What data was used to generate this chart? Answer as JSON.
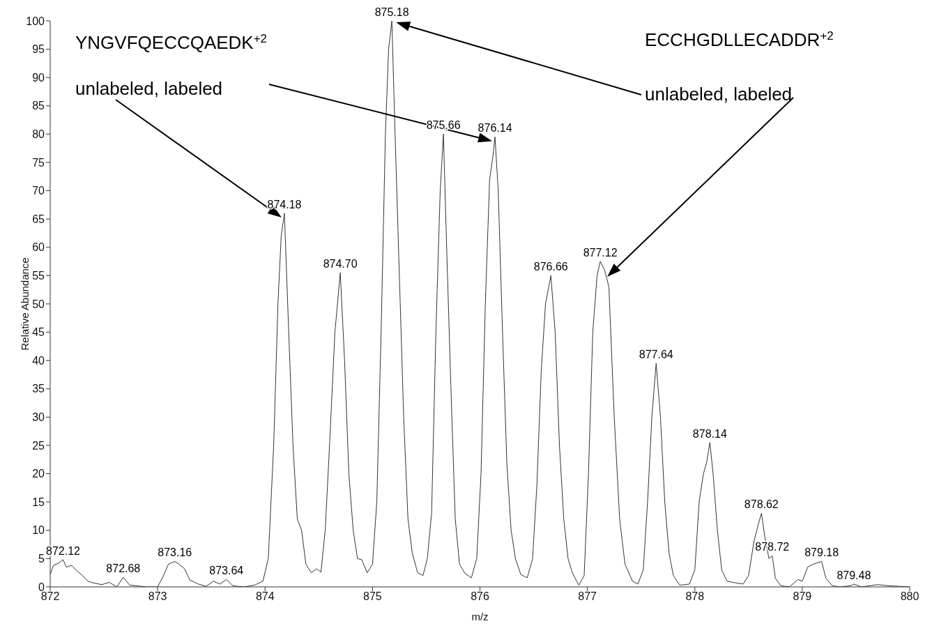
{
  "chart_data": {
    "type": "line",
    "xlabel": "m/z",
    "ylabel": "Relative Abundance",
    "xlim": [
      872,
      880
    ],
    "ylim": [
      0,
      100
    ],
    "xticks": [
      872,
      873,
      874,
      875,
      876,
      877,
      878,
      879,
      880
    ],
    "yticks": [
      0,
      5,
      10,
      15,
      20,
      25,
      30,
      35,
      40,
      45,
      50,
      55,
      60,
      65,
      70,
      75,
      80,
      85,
      90,
      95,
      100
    ],
    "grid": false,
    "legend": false,
    "marker": "none",
    "line_style": "solid",
    "series": [
      {
        "color": "#333333",
        "x": [
          872,
          872.03,
          872.08,
          872.12,
          872.15,
          872.2,
          872.25,
          872.3,
          872.35,
          872.4,
          872.48,
          872.55,
          872.62,
          872.68,
          872.74,
          872.8,
          872.9,
          873.0,
          873.05,
          873.1,
          873.16,
          873.2,
          873.25,
          873.3,
          873.38,
          873.45,
          873.52,
          873.58,
          873.64,
          873.7,
          873.8,
          873.9,
          873.98,
          874.03,
          874.08,
          874.12,
          874.15,
          874.18,
          874.22,
          874.26,
          874.3,
          874.34,
          874.38,
          874.43,
          874.48,
          874.52,
          874.56,
          874.6,
          874.65,
          874.7,
          874.74,
          874.78,
          874.82,
          874.86,
          874.9,
          874.95,
          875.0,
          875.04,
          875.08,
          875.12,
          875.15,
          875.18,
          875.21,
          875.25,
          875.29,
          875.33,
          875.37,
          875.42,
          875.47,
          875.51,
          875.55,
          875.59,
          875.63,
          875.66,
          875.69,
          875.73,
          875.77,
          875.81,
          875.86,
          875.92,
          875.97,
          876.01,
          876.05,
          876.09,
          876.12,
          876.14,
          876.17,
          876.21,
          876.25,
          876.29,
          876.33,
          876.38,
          876.44,
          876.49,
          876.53,
          876.57,
          876.61,
          876.66,
          876.7,
          876.74,
          876.78,
          876.82,
          876.86,
          876.92,
          876.97,
          877.01,
          877.05,
          877.09,
          877.12,
          877.16,
          877.2,
          877.25,
          877.3,
          877.35,
          877.42,
          877.47,
          877.52,
          877.56,
          877.6,
          877.64,
          877.68,
          877.72,
          877.76,
          877.8,
          877.86,
          877.95,
          878.0,
          878.04,
          878.08,
          878.11,
          878.14,
          878.17,
          878.21,
          878.25,
          878.3,
          878.38,
          878.45,
          878.5,
          878.55,
          878.59,
          878.62,
          878.65,
          878.69,
          878.72,
          878.75,
          878.8,
          878.88,
          878.96,
          879.0,
          879.05,
          879.1,
          879.18,
          879.22,
          879.28,
          879.35,
          879.45,
          879.48,
          879.55,
          879.7,
          879.8,
          879.9,
          880
        ],
        "values": [
          2.2,
          3.8,
          4.2,
          4.8,
          3.5,
          3.8,
          2.8,
          2.0,
          1.0,
          0.7,
          0.4,
          0.8,
          0.0,
          1.7,
          0.3,
          0.2,
          0.0,
          0.0,
          1.8,
          4.0,
          4.5,
          4.0,
          3.2,
          1.2,
          0.5,
          0.1,
          1.0,
          0.5,
          1.3,
          0.2,
          0.0,
          0.3,
          1.0,
          5,
          25,
          50,
          62,
          66,
          45,
          25,
          12,
          10,
          4,
          2.5,
          3.2,
          2.6,
          10,
          25,
          45,
          55.5,
          40,
          20,
          10,
          5,
          4.8,
          2.5,
          4,
          15,
          45,
          80,
          95,
          100,
          80,
          55,
          30,
          12,
          6,
          2.5,
          2.0,
          5,
          13,
          45,
          70,
          80,
          60,
          35,
          12,
          4,
          2.4,
          1.6,
          5,
          20,
          50,
          72,
          76,
          79.5,
          70,
          45,
          22,
          10,
          5,
          2.2,
          1.6,
          5,
          18,
          38,
          50,
          55,
          45,
          25,
          12,
          5,
          2.5,
          0.3,
          2,
          20,
          45,
          55,
          57.5,
          56,
          53,
          30,
          12,
          4,
          1.0,
          0.5,
          3,
          15,
          30,
          39.5,
          30,
          15,
          6,
          2.0,
          0.3,
          0.5,
          3,
          15,
          20,
          22,
          25.5,
          20,
          10,
          3,
          1.0,
          0.7,
          0.5,
          2,
          8,
          11,
          13,
          9,
          5,
          5.5,
          1.5,
          0.2,
          0.0,
          1.3,
          1.0,
          3.5,
          4.0,
          4.5,
          1.5,
          0.2,
          0.0,
          0.2,
          0.5,
          0.0,
          0.4,
          0.2,
          0.1,
          0.0
        ]
      }
    ],
    "annotations": [
      "YNGVFQECCQAEDK$^{+2}$",
      "ECCHGDLLECADDR$^{+2}$",
      "unlabeled, labeled",
      "unlabeled, labeled",
      {
        "text": "872.12",
        "x": 872.12,
        "y": 4.8
      },
      {
        "text": "872.68",
        "x": 872.68,
        "y": 1.7
      },
      {
        "text": "873.16",
        "x": 873.16,
        "y": 4.5
      },
      {
        "text": "873.64",
        "x": 873.64,
        "y": 1.3
      },
      {
        "text": "874.18",
        "x": 874.18,
        "y": 66
      },
      {
        "text": "874.70",
        "x": 874.7,
        "y": 55.5
      },
      {
        "text": "875.18",
        "x": 875.18,
        "y": 100
      },
      {
        "text": "875.66",
        "x": 875.66,
        "y": 80
      },
      {
        "text": "876.14",
        "x": 876.14,
        "y": 79.5
      },
      {
        "text": "876.66",
        "x": 876.66,
        "y": 55
      },
      {
        "text": "877.12",
        "x": 877.12,
        "y": 57.5
      },
      {
        "text": "877.64",
        "x": 877.64,
        "y": 39.5
      },
      {
        "text": "878.14",
        "x": 878.14,
        "y": 25.5
      },
      {
        "text": "878.62",
        "x": 878.62,
        "y": 13
      },
      {
        "text": "878.72",
        "x": 878.72,
        "y": 5.5
      },
      {
        "text": "879.18",
        "x": 879.18,
        "y": 4.5
      },
      {
        "text": "879.48",
        "x": 879.48,
        "y": 0.5
      }
    ]
  }
}
